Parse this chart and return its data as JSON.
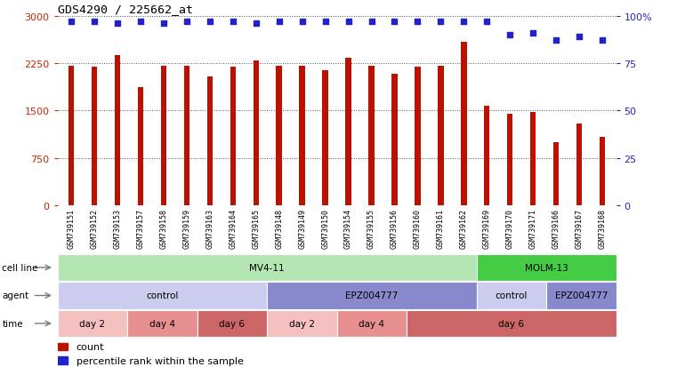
{
  "title": "GDS4290 / 225662_at",
  "samples": [
    "GSM739151",
    "GSM739152",
    "GSM739153",
    "GSM739157",
    "GSM739158",
    "GSM739159",
    "GSM739163",
    "GSM739164",
    "GSM739165",
    "GSM739148",
    "GSM739149",
    "GSM739150",
    "GSM739154",
    "GSM739155",
    "GSM739156",
    "GSM739160",
    "GSM739161",
    "GSM739162",
    "GSM739169",
    "GSM739170",
    "GSM739171",
    "GSM739166",
    "GSM739167",
    "GSM739168"
  ],
  "counts": [
    2200,
    2190,
    2380,
    1870,
    2210,
    2200,
    2040,
    2190,
    2290,
    2210,
    2200,
    2140,
    2340,
    2200,
    2080,
    2190,
    2200,
    2580,
    1570,
    1450,
    1480,
    1000,
    1290,
    1080
  ],
  "percentile": [
    97,
    97,
    96,
    97,
    96,
    97,
    97,
    97,
    96,
    97,
    97,
    97,
    97,
    97,
    97,
    97,
    97,
    97,
    97,
    90,
    91,
    87,
    89,
    87
  ],
  "bar_color": "#bb1100",
  "dot_color": "#2222cc",
  "ylim_left": [
    0,
    3000
  ],
  "ylim_right": [
    0,
    100
  ],
  "yticks_left": [
    0,
    750,
    1500,
    2250,
    3000
  ],
  "yticks_right": [
    0,
    25,
    50,
    75,
    100
  ],
  "yticklabels_left": [
    "0",
    "750",
    "1500",
    "2250",
    "3000"
  ],
  "yticklabels_right": [
    "0",
    "25",
    "50",
    "75",
    "100%"
  ],
  "cell_line_data": [
    {
      "label": "MV4-11",
      "start": 0,
      "end": 18,
      "color": "#b3e6b3"
    },
    {
      "label": "MOLM-13",
      "start": 18,
      "end": 24,
      "color": "#44cc44"
    }
  ],
  "agent_data": [
    {
      "label": "control",
      "start": 0,
      "end": 9,
      "color": "#ccccee"
    },
    {
      "label": "EPZ004777",
      "start": 9,
      "end": 18,
      "color": "#8888cc"
    },
    {
      "label": "control",
      "start": 18,
      "end": 21,
      "color": "#ccccee"
    },
    {
      "label": "EPZ004777",
      "start": 21,
      "end": 24,
      "color": "#8888cc"
    }
  ],
  "time_data": [
    {
      "label": "day 2",
      "start": 0,
      "end": 3,
      "color": "#f5c0c0"
    },
    {
      "label": "day 4",
      "start": 3,
      "end": 6,
      "color": "#e89090"
    },
    {
      "label": "day 6",
      "start": 6,
      "end": 9,
      "color": "#cc6666"
    },
    {
      "label": "day 2",
      "start": 9,
      "end": 12,
      "color": "#f5c0c0"
    },
    {
      "label": "day 4",
      "start": 12,
      "end": 15,
      "color": "#e89090"
    },
    {
      "label": "day 6",
      "start": 15,
      "end": 24,
      "color": "#cc6666"
    }
  ],
  "legend_items": [
    {
      "label": "count",
      "color": "#bb1100"
    },
    {
      "label": "percentile rank within the sample",
      "color": "#2222cc"
    }
  ],
  "left_label_color": "#cc2200",
  "right_label_color": "#2222cc",
  "bg_color": "#ffffff",
  "grid_color": "#555555",
  "tick_area_bg": "#cccccc",
  "bar_width": 0.25,
  "dot_size": 20
}
